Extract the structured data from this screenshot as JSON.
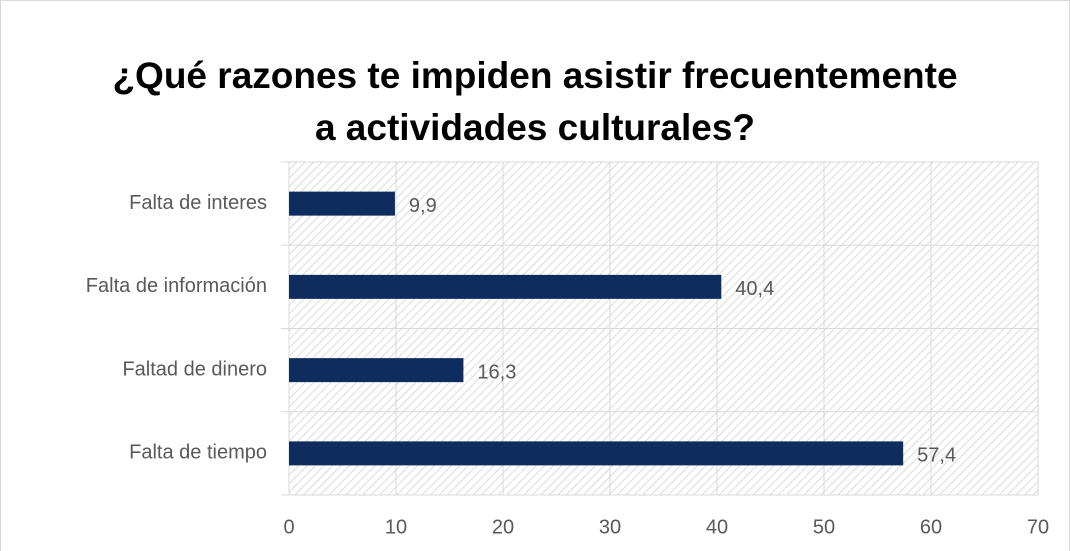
{
  "chart_data": {
    "type": "bar",
    "orientation": "horizontal",
    "title": "¿Qué razones te impiden asistir frecuentemente a actividades culturales?",
    "categories": [
      "Falta de interes",
      "Falta de información",
      "Faltad de dinero",
      "Falta de tiempo"
    ],
    "values": [
      9.9,
      40.4,
      16.3,
      57.4
    ],
    "value_labels": [
      "9,9",
      "40,4",
      "16,3",
      "57,4"
    ],
    "color": "#0e2d5e",
    "xlim": [
      0,
      70
    ],
    "xticks": [
      0,
      10,
      20,
      30,
      40,
      50,
      60,
      70
    ],
    "grid": true
  }
}
